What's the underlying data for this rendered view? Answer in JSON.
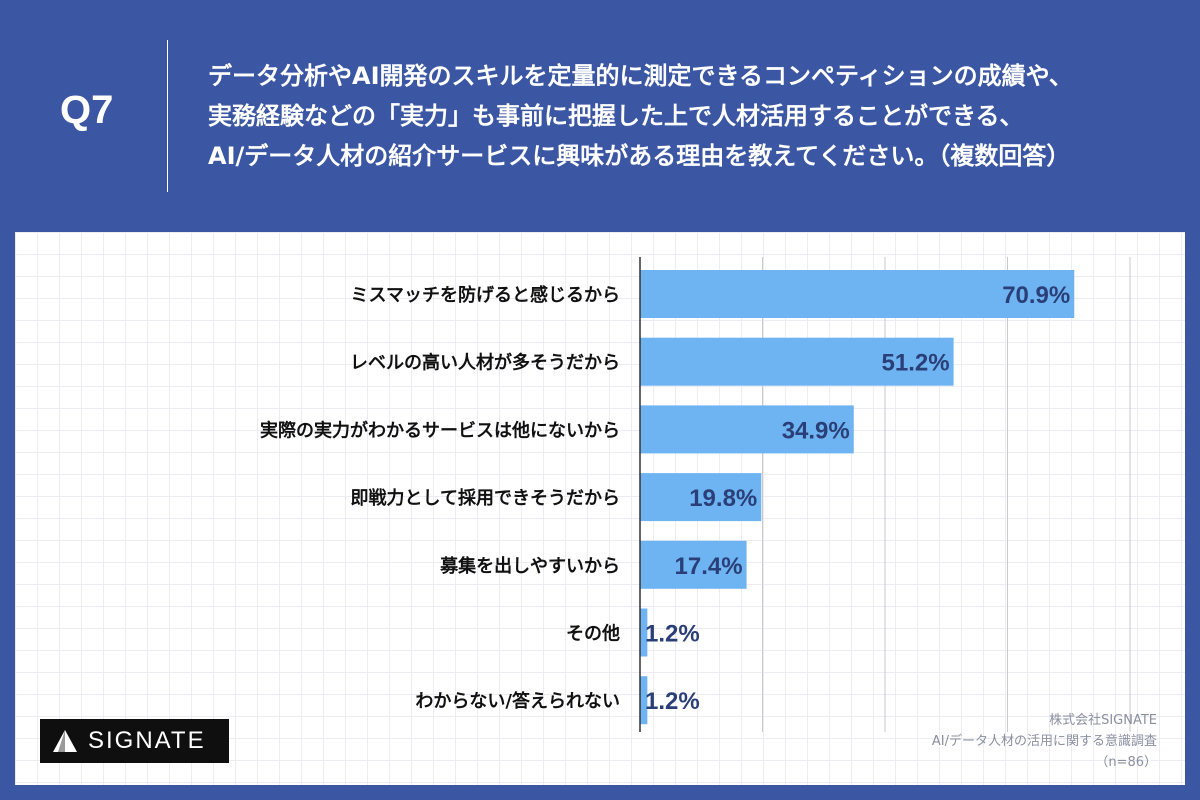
{
  "header": {
    "q_label": "Q7",
    "question_lines": [
      "データ分析やAI開発のスキルを定量的に測定できるコンペティションの成績や、",
      "実務経験などの「実力」も事前に把握した上で人材活用することができる、",
      "AI/データ人材の紹介サービスに興味がある理由を教えてください。（複数回答）"
    ]
  },
  "chart_data": {
    "type": "bar",
    "orientation": "horizontal",
    "categories": [
      "ミスマッチを防げると感じるから",
      "レベルの高い人材が多そうだから",
      "実際の実力がわかるサービスは他にないから",
      "即戦力として採用できそうだから",
      "募集を出しやすいから",
      "その他",
      "わからない/答えられない"
    ],
    "values": [
      70.9,
      51.2,
      34.9,
      19.8,
      17.4,
      1.2,
      1.2
    ],
    "value_labels": [
      "70.9%",
      "51.2%",
      "34.9%",
      "19.8%",
      "17.4%",
      "1.2%",
      "1.2%"
    ],
    "xlim": [
      0,
      80
    ],
    "grid": true,
    "bar_color": "#6fb4f2"
  },
  "logo": {
    "text": "SIGNATE"
  },
  "source": {
    "lines": [
      "株式会社SIGNATE",
      "AI/データ人材の活用に関する意識調査",
      "（n=86）"
    ]
  }
}
